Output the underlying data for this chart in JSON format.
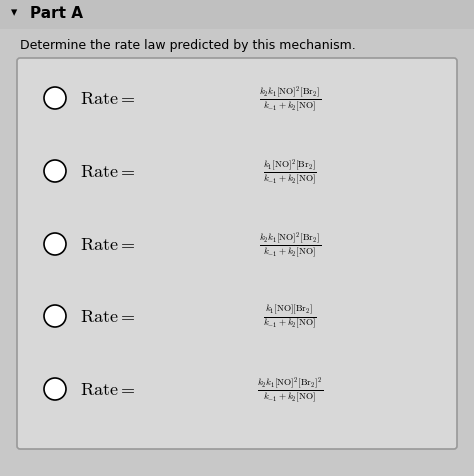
{
  "title": "Part A",
  "subtitle": "Determine the rate law predicted by this mechanism.",
  "bg_outer": "#b8b8b8",
  "bg_inner": "#c8c8c8",
  "box_color": "#d8d8d8",
  "box_edge": "#999999",
  "options": [
    "\\frac{k_2 k_1 [\\mathrm{NO}]^2[\\mathrm{Br}_2]}{k_{-1}+k_2[\\mathrm{NO}]}",
    "\\frac{k_1 [\\mathrm{NO}]^2[\\mathrm{Br}_2]}{k_{-1}+k_2[\\mathrm{NO}]}",
    "\\frac{k_2 k_1 [\\mathrm{NO}]^2[\\mathrm{Br}_2]}{k_{-1}+k_2[\\mathrm{NO}]}",
    "\\frac{k_1 [\\mathrm{NO}][\\mathrm{Br}_2]}{k_{-1}+k_2[\\mathrm{NO}]}",
    "\\frac{k_2 k_1 [\\mathrm{NO}]^2[\\mathrm{Br}_2]^2}{k_{-1}+k_2[\\mathrm{NO}]}"
  ],
  "figsize": [
    4.74,
    4.77
  ],
  "dpi": 100
}
